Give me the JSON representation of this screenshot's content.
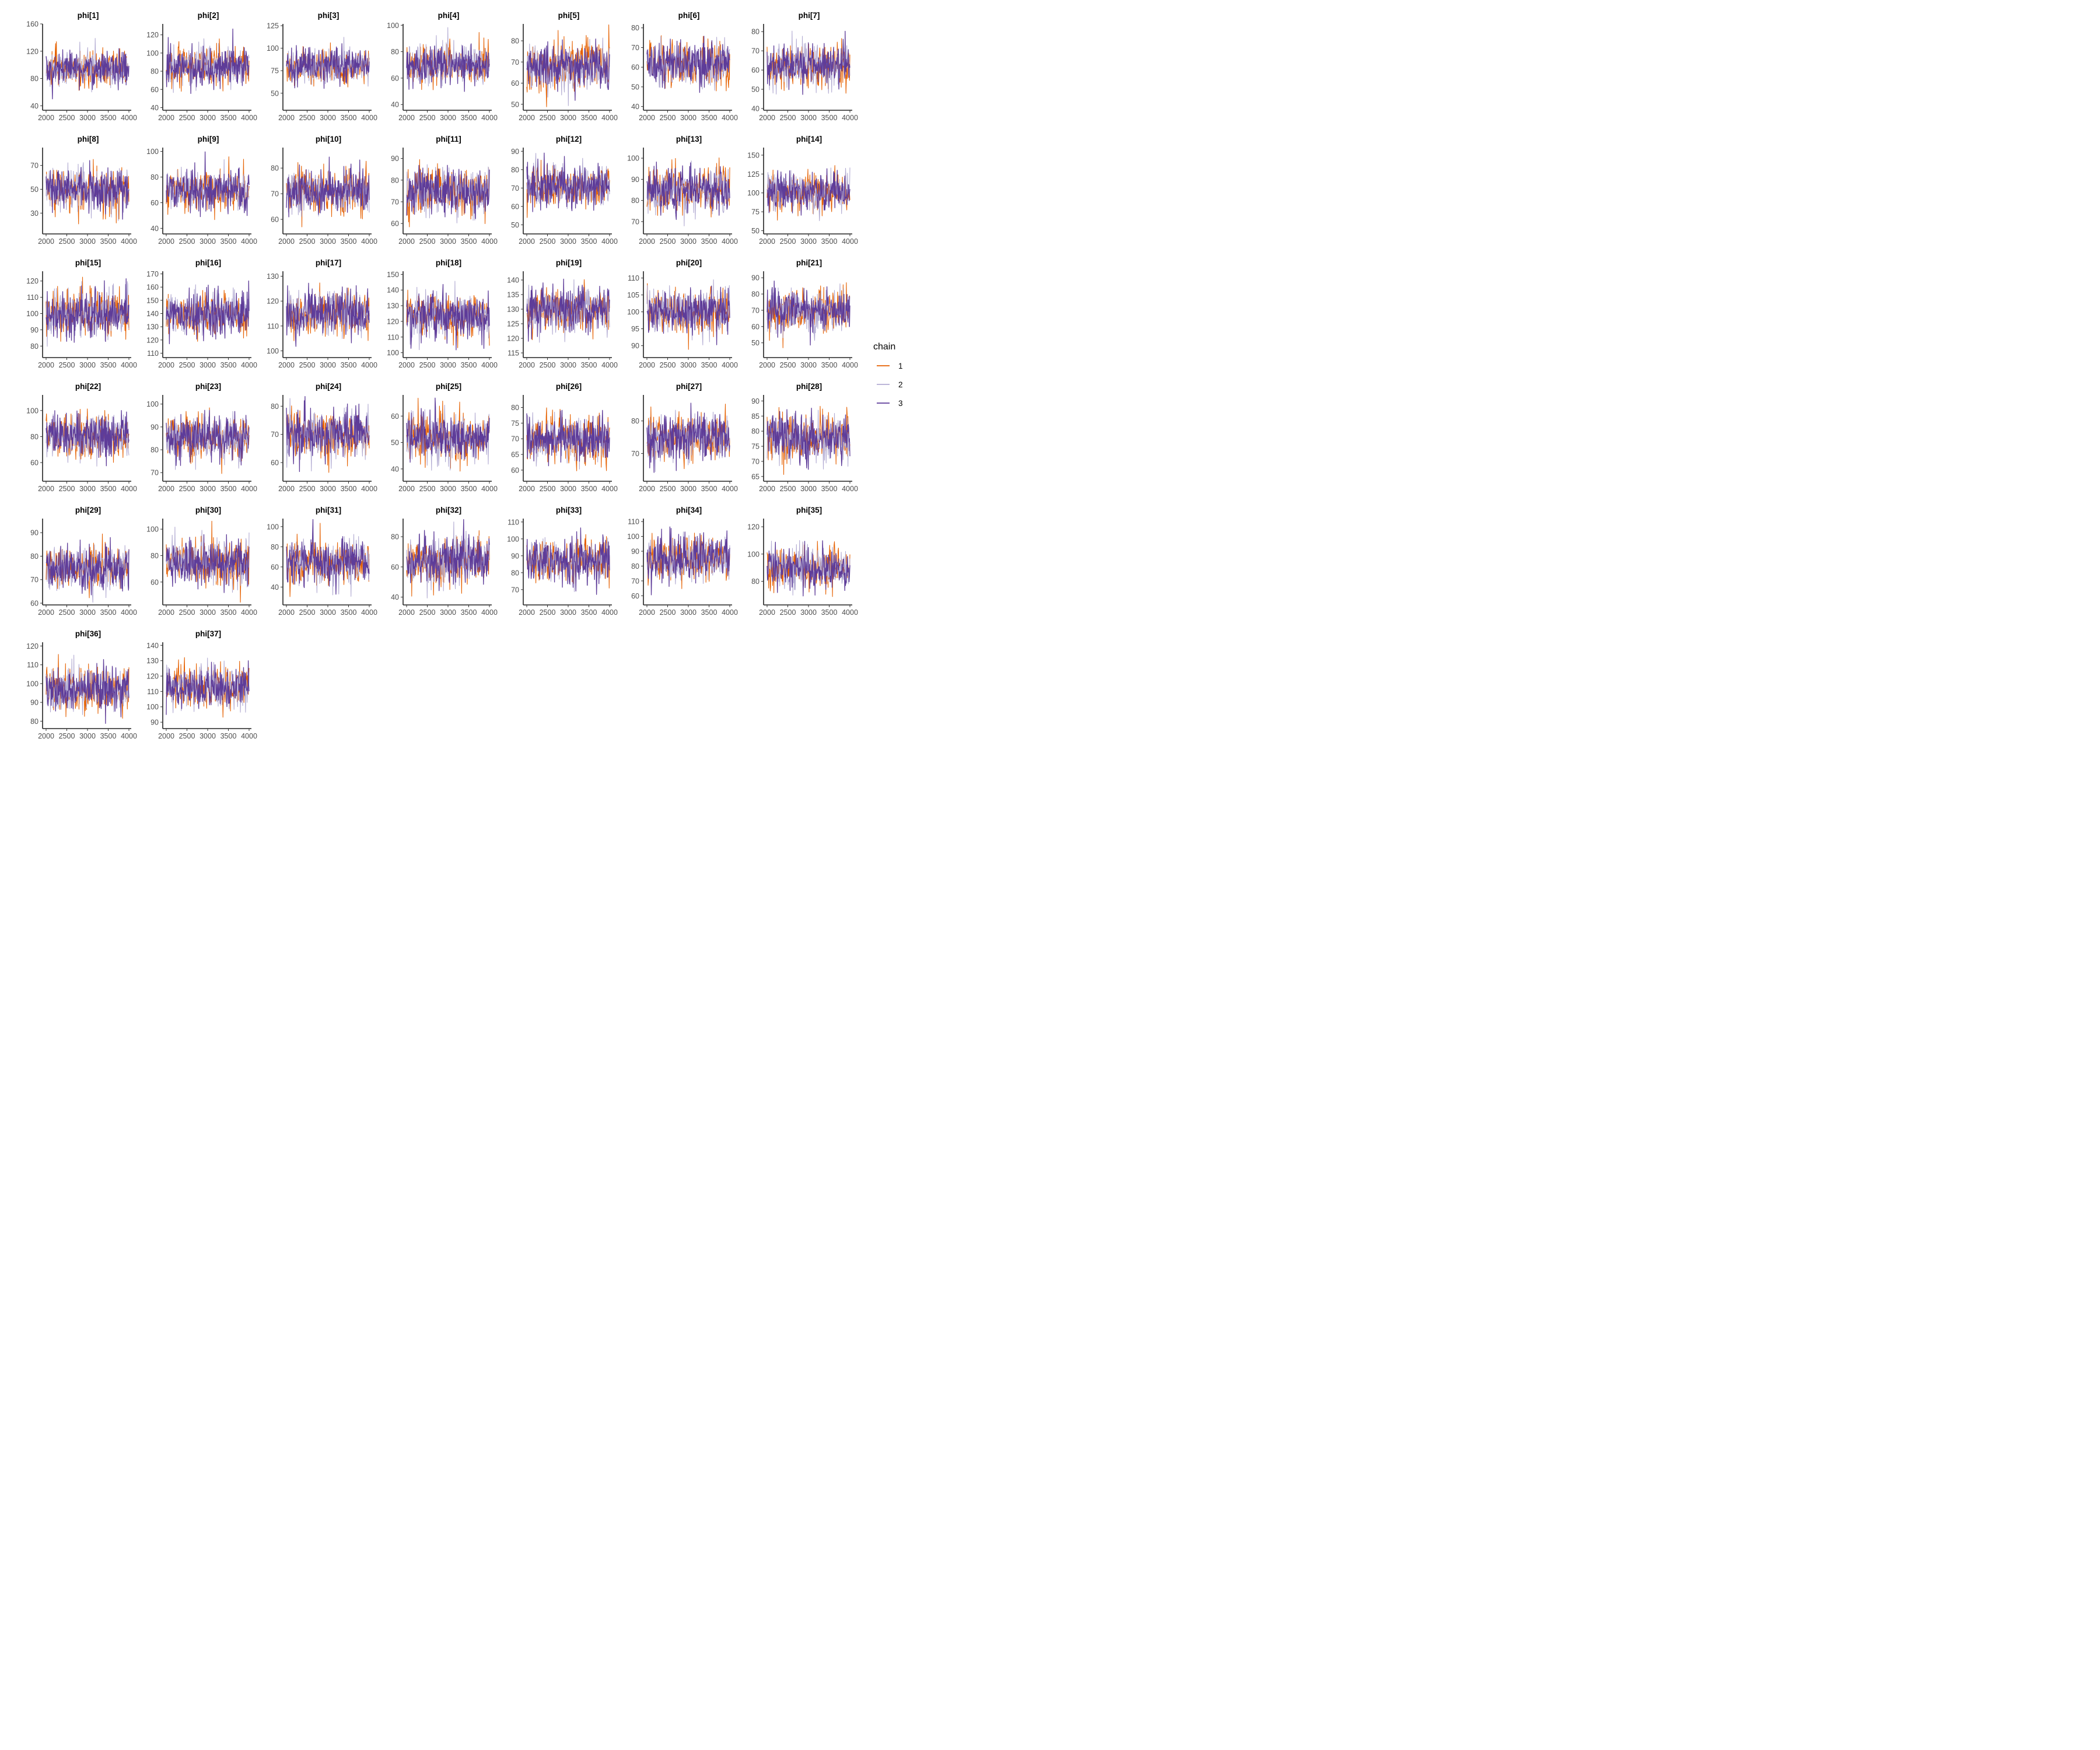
{
  "chart_data": {
    "type": "line",
    "x_ticks": [
      2000,
      2500,
      3000,
      3500,
      4000
    ],
    "x_range": [
      2000,
      4000
    ],
    "grid": false,
    "legend": {
      "title": "chain",
      "placement": "right",
      "entries": [
        {
          "name": "1",
          "color": "#E66101"
        },
        {
          "name": "2",
          "color": "#B2ABD2"
        },
        {
          "name": "3",
          "color": "#5E3C99"
        }
      ]
    },
    "panels": [
      {
        "title": "phi[1]",
        "ylim": [
          36,
          160
        ],
        "yticks": [
          40,
          80,
          120,
          160
        ],
        "center": 95,
        "sd": 13
      },
      {
        "title": "phi[2]",
        "ylim": [
          39,
          132
        ],
        "yticks": [
          40,
          60,
          80,
          100,
          120
        ],
        "center": 85,
        "sd": 11
      },
      {
        "title": "phi[3]",
        "ylim": [
          33,
          127
        ],
        "yticks": [
          50,
          75,
          100,
          125
        ],
        "center": 80,
        "sd": 10
      },
      {
        "title": "phi[4]",
        "ylim": [
          37,
          101
        ],
        "yticks": [
          40,
          60,
          80,
          100
        ],
        "center": 70,
        "sd": 7.5
      },
      {
        "title": "phi[5]",
        "ylim": [
          48,
          88
        ],
        "yticks": [
          50,
          60,
          70,
          80
        ],
        "center": 68,
        "sd": 5.5
      },
      {
        "title": "phi[6]",
        "ylim": [
          39,
          82
        ],
        "yticks": [
          40,
          50,
          60,
          70,
          80
        ],
        "center": 62,
        "sd": 5.5
      },
      {
        "title": "phi[7]",
        "ylim": [
          40,
          84
        ],
        "yticks": [
          40,
          50,
          60,
          70,
          80
        ],
        "center": 62,
        "sd": 5.5
      },
      {
        "title": "phi[8]",
        "ylim": [
          14,
          85
        ],
        "yticks": [
          30,
          50,
          70
        ],
        "center": 50,
        "sd": 9
      },
      {
        "title": "phi[9]",
        "ylim": [
          37,
          103
        ],
        "yticks": [
          40,
          60,
          80,
          100
        ],
        "center": 70,
        "sd": 8
      },
      {
        "title": "phi[10]",
        "ylim": [
          55,
          88
        ],
        "yticks": [
          60,
          70,
          80
        ],
        "center": 71,
        "sd": 4.5
      },
      {
        "title": "phi[11]",
        "ylim": [
          56,
          95
        ],
        "yticks": [
          60,
          70,
          80,
          90
        ],
        "center": 75,
        "sd": 5.5
      },
      {
        "title": "phi[12]",
        "ylim": [
          46,
          92
        ],
        "yticks": [
          50,
          60,
          70,
          80,
          90
        ],
        "center": 71,
        "sd": 5.5
      },
      {
        "title": "phi[13]",
        "ylim": [
          65,
          105
        ],
        "yticks": [
          70,
          80,
          90,
          100
        ],
        "center": 85,
        "sd": 5.5
      },
      {
        "title": "phi[14]",
        "ylim": [
          48,
          160
        ],
        "yticks": [
          50,
          75,
          100,
          125,
          150
        ],
        "center": 102,
        "sd": 13
      },
      {
        "title": "phi[15]",
        "ylim": [
          74,
          126
        ],
        "yticks": [
          80,
          90,
          100,
          110,
          120
        ],
        "center": 100,
        "sd": 7
      },
      {
        "title": "phi[16]",
        "ylim": [
          108,
          172
        ],
        "yticks": [
          110,
          120,
          130,
          140,
          150,
          160,
          170
        ],
        "center": 140,
        "sd": 8
      },
      {
        "title": "phi[17]",
        "ylim": [
          98,
          132
        ],
        "yticks": [
          100,
          110,
          120,
          130
        ],
        "center": 115,
        "sd": 4.5
      },
      {
        "title": "phi[18]",
        "ylim": [
          98,
          152
        ],
        "yticks": [
          100,
          110,
          120,
          130,
          140,
          150
        ],
        "center": 124,
        "sd": 7
      },
      {
        "title": "phi[19]",
        "ylim": [
          114,
          143
        ],
        "yticks": [
          115,
          120,
          125,
          130,
          135,
          140
        ],
        "center": 130,
        "sd": 3.8
      },
      {
        "title": "phi[20]",
        "ylim": [
          87,
          112
        ],
        "yticks": [
          90,
          95,
          100,
          105,
          110
        ],
        "center": 100,
        "sd": 3.4
      },
      {
        "title": "phi[21]",
        "ylim": [
          42,
          94
        ],
        "yticks": [
          50,
          60,
          70,
          80,
          90
        ],
        "center": 70,
        "sd": 7
      },
      {
        "title": "phi[22]",
        "ylim": [
          47,
          112
        ],
        "yticks": [
          60,
          80,
          100
        ],
        "center": 80,
        "sd": 8.5
      },
      {
        "title": "phi[23]",
        "ylim": [
          67,
          104
        ],
        "yticks": [
          70,
          80,
          90,
          100
        ],
        "center": 85,
        "sd": 5
      },
      {
        "title": "phi[24]",
        "ylim": [
          54,
          84
        ],
        "yticks": [
          60,
          70,
          80
        ],
        "center": 70,
        "sd": 4.2
      },
      {
        "title": "phi[25]",
        "ylim": [
          36,
          68
        ],
        "yticks": [
          40,
          50,
          60
        ],
        "center": 52,
        "sd": 4.3
      },
      {
        "title": "phi[26]",
        "ylim": [
          57,
          84
        ],
        "yticks": [
          60,
          65,
          70,
          75,
          80
        ],
        "center": 70,
        "sd": 3.6
      },
      {
        "title": "phi[27]",
        "ylim": [
          62,
          88
        ],
        "yticks": [
          70,
          80
        ],
        "center": 75,
        "sd": 3.6
      },
      {
        "title": "phi[28]",
        "ylim": [
          64,
          92
        ],
        "yticks": [
          65,
          70,
          75,
          80,
          85,
          90
        ],
        "center": 78,
        "sd": 3.8
      },
      {
        "title": "phi[29]",
        "ylim": [
          60,
          96
        ],
        "yticks": [
          60,
          70,
          80,
          90
        ],
        "center": 75,
        "sd": 4.6
      },
      {
        "title": "phi[30]",
        "ylim": [
          44,
          108
        ],
        "yticks": [
          60,
          80,
          100
        ],
        "center": 75,
        "sd": 8.5
      },
      {
        "title": "phi[31]",
        "ylim": [
          24,
          108
        ],
        "yticks": [
          40,
          60,
          80,
          100
        ],
        "center": 65,
        "sd": 11
      },
      {
        "title": "phi[32]",
        "ylim": [
          36,
          92
        ],
        "yticks": [
          40,
          60,
          80
        ],
        "center": 64,
        "sd": 7.5
      },
      {
        "title": "phi[33]",
        "ylim": [
          62,
          112
        ],
        "yticks": [
          70,
          80,
          90,
          100,
          110
        ],
        "center": 87,
        "sd": 6.5
      },
      {
        "title": "phi[34]",
        "ylim": [
          55,
          112
        ],
        "yticks": [
          60,
          70,
          80,
          90,
          100,
          110
        ],
        "center": 85,
        "sd": 7.5
      },
      {
        "title": "phi[35]",
        "ylim": [
          64,
          126
        ],
        "yticks": [
          80,
          100,
          120
        ],
        "center": 90,
        "sd": 7.5
      },
      {
        "title": "phi[36]",
        "ylim": [
          77,
          122
        ],
        "yticks": [
          80,
          90,
          100,
          110,
          120
        ],
        "center": 97,
        "sd": 6
      },
      {
        "title": "phi[37]",
        "ylim": [
          87,
          142
        ],
        "yticks": [
          90,
          100,
          110,
          120,
          130,
          140
        ],
        "center": 113,
        "sd": 7
      }
    ]
  }
}
